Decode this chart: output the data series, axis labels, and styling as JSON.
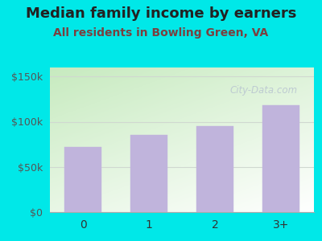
{
  "title": "Median family income by earners",
  "subtitle": "All residents in Bowling Green, VA",
  "categories": [
    "0",
    "1",
    "2",
    "3+"
  ],
  "values": [
    72000,
    85000,
    95000,
    118000
  ],
  "bar_color": "#c0b4dc",
  "ylim": [
    0,
    160000
  ],
  "yticks": [
    0,
    50000,
    100000,
    150000
  ],
  "ytick_labels": [
    "$0",
    "$50k",
    "$100k",
    "$150k"
  ],
  "bg_outer": "#00e8e8",
  "title_fontsize": 13,
  "subtitle_fontsize": 10,
  "title_color": "#222222",
  "subtitle_color": "#7a4040",
  "watermark_text": "City-Data.com",
  "watermark_color": "#b8c4d0",
  "gradient_top": "#c8e8c0",
  "gradient_bottom": "#f8fff8",
  "grid_color": "#d0d8d0"
}
